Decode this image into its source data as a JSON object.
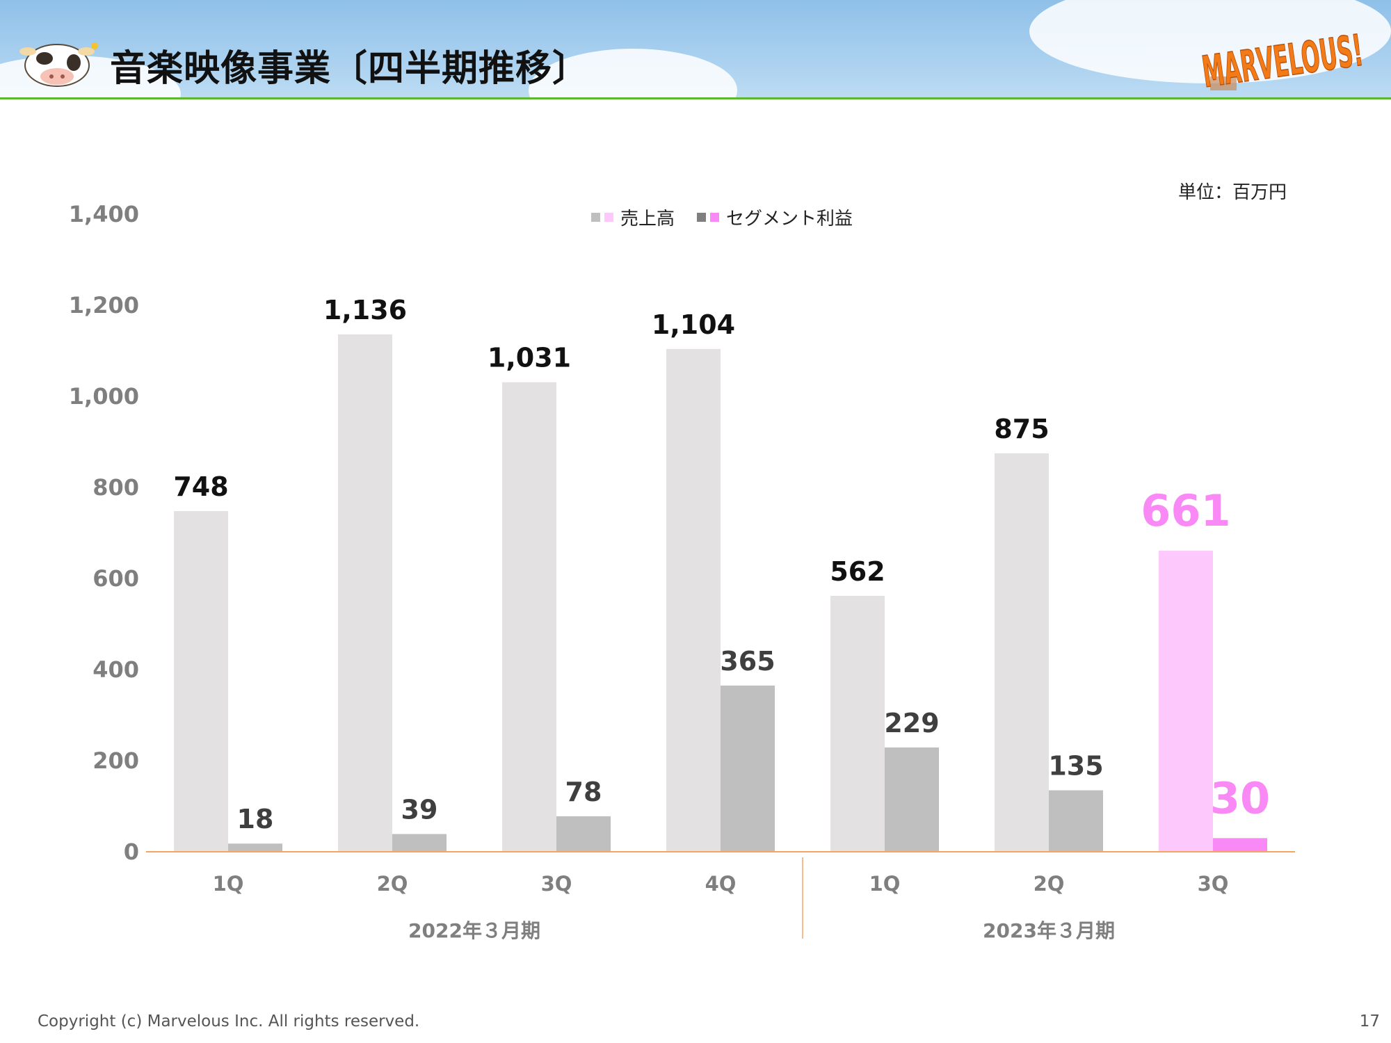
{
  "header": {
    "title": "音楽映像事業〔四半期推移〕",
    "logo_text": "MARVELOUS!",
    "mascot": "cow-mascot-icon"
  },
  "unit_label": "単位：百万円",
  "legend": {
    "sales_label": "売上高",
    "profit_label": "セグメント利益"
  },
  "colors": {
    "sales_bar": "#e3e1e2",
    "profit_bar": "#bfbfbf",
    "sales_highlight": "#fdc8fc",
    "profit_highlight": "#f989f5",
    "label_highlight": "#f989f5",
    "axis_line": "#f4a564",
    "header_border": "#5cb82e"
  },
  "chart_data": {
    "type": "bar",
    "categories": [
      "1Q",
      "2Q",
      "3Q",
      "4Q",
      "1Q",
      "2Q",
      "3Q"
    ],
    "groups": [
      {
        "label": "2022年３月期",
        "categories": [
          0,
          1,
          2,
          3
        ]
      },
      {
        "label": "2023年３月期",
        "categories": [
          4,
          5,
          6
        ]
      }
    ],
    "series": [
      {
        "name": "売上高",
        "values": [
          748,
          1136,
          1031,
          1104,
          562,
          875,
          661
        ]
      },
      {
        "name": "セグメント利益",
        "values": [
          18,
          39,
          78,
          365,
          229,
          135,
          30
        ]
      }
    ],
    "value_labels": [
      [
        "748",
        "1,136",
        "1,031",
        "1,104",
        "562",
        "875",
        "661"
      ],
      [
        "18",
        "39",
        "78",
        "365",
        "229",
        "135",
        "30"
      ]
    ],
    "highlight_category": 6,
    "ylim": [
      0,
      1400
    ],
    "yticks": [
      0,
      200,
      400,
      600,
      800,
      1000,
      1200,
      1400
    ],
    "ytick_labels": [
      "0",
      "200",
      "400",
      "600",
      "800",
      "1,000",
      "1,200",
      "1,400"
    ],
    "grid": false,
    "legend_position": "top-center"
  },
  "footer": {
    "copyright": "Copyright (c) Marvelous Inc. All rights reserved.",
    "page_number": "17"
  }
}
